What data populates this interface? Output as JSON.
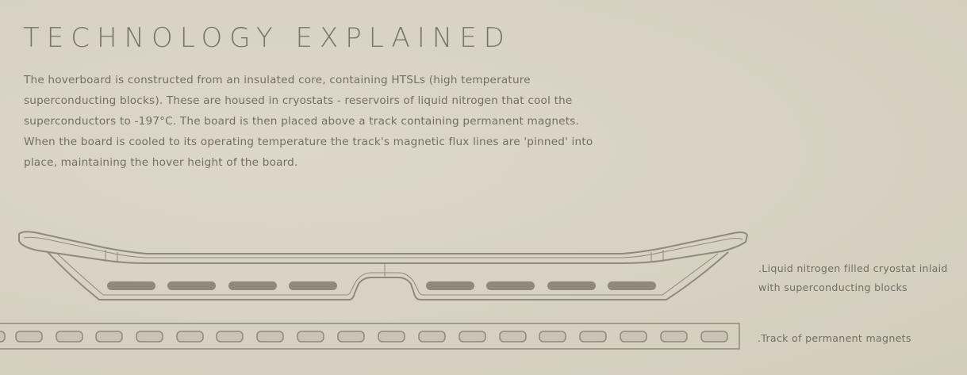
{
  "title": "TECHNOLOGY EXPLAINED",
  "intro": "The hoverboard is constructed from an insulated core, containing HTSLs (high temperature superconducting blocks). These are housed in cryostats - reservoirs of liquid nitrogen that cool the superconductors to -197°C. The board is then placed above a track containing permanent magnets. When the board is cooled to its operating temperature the track's magnetic flux lines are 'pinned' into place, maintaining the hover height of the board.",
  "callouts": {
    "cryostat_line1": ".Liquid nitrogen filled cryostat inlaid",
    "cryostat_line2": "with superconducting blocks",
    "track": ".Track of permanent magnets"
  },
  "colors": {
    "background": "#d8d3c4",
    "line": "#918a7c",
    "block_fill": "#8f887b",
    "magnet_fill": "#c9c4b5",
    "text": "#736e63"
  },
  "diagram": {
    "superconducting_block_count": 8,
    "magnet_count": 18
  }
}
